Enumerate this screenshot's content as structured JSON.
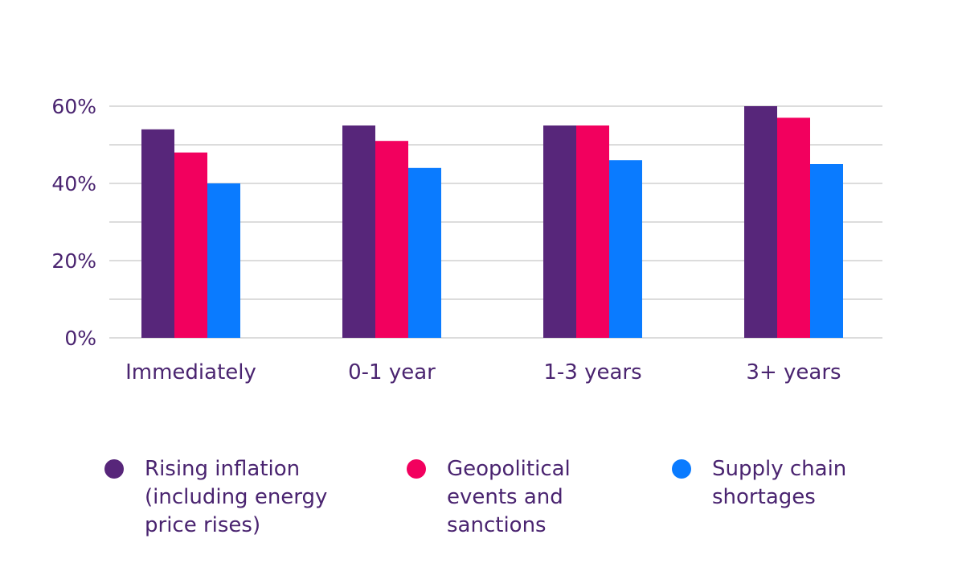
{
  "chart_data": {
    "type": "bar",
    "categories": [
      "Immediately",
      "0-1 year",
      "1-3 years",
      "3+ years"
    ],
    "series": [
      {
        "name": "Rising inflation (including energy price rises)",
        "color": "#57267a",
        "values": [
          54,
          55,
          55,
          60
        ]
      },
      {
        "name": "Geopolitical events and sanctions",
        "color": "#f2005e",
        "values": [
          48,
          51,
          55,
          57
        ]
      },
      {
        "name": "Supply chain shortages",
        "color": "#0a7bff",
        "values": [
          40,
          44,
          46,
          45
        ]
      }
    ],
    "ylim": [
      0,
      60
    ],
    "yticks": [
      0,
      20,
      40,
      60
    ],
    "ytick_labels": [
      "0%",
      "20%",
      "40%",
      "60%"
    ],
    "gridlines": [
      0,
      10,
      20,
      30,
      40,
      50,
      60
    ],
    "grid": true,
    "legend_position": "bottom",
    "title": "",
    "xlabel": "",
    "ylabel": ""
  },
  "legend": {
    "items": [
      {
        "lines": [
          "Rising inflation",
          "(including energy",
          "price rises)"
        ],
        "color": "#57267a"
      },
      {
        "lines": [
          "Geopolitical",
          "events and",
          "sanctions"
        ],
        "color": "#f2005e"
      },
      {
        "lines": [
          "Supply chain",
          "shortages"
        ],
        "color": "#0a7bff"
      }
    ]
  },
  "colors": {
    "text": "#4a2470",
    "grid": "#c8c8c8"
  }
}
